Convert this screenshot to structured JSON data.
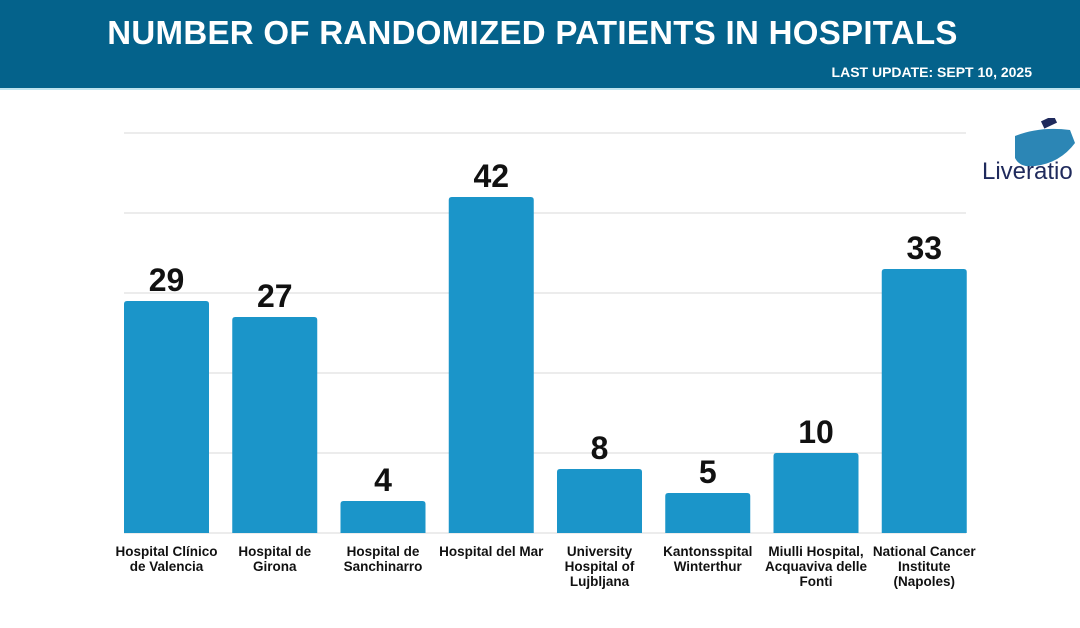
{
  "header": {
    "title": "NUMBER OF RANDOMIZED PATIENTS IN HOSPITALS",
    "last_update": "LAST UPDATE: SEPT 10, 2025"
  },
  "logo": {
    "text": "Liveratio"
  },
  "chart_data": {
    "type": "bar",
    "title": "NUMBER OF RANDOMIZED PATIENTS IN HOSPITALS",
    "categories": [
      "Hospital Clínico de Valencia",
      "Hospital de Girona",
      "Hospital de Sanchinarro",
      "Hospital del Mar",
      "University Hospital of Lujbljana",
      "Kantonsspital Winterthur",
      "Miulli Hospital, Acquaviva delle Fonti",
      "National Cancer Institute (Napoles)"
    ],
    "values": [
      29,
      27,
      4,
      42,
      8,
      5,
      10,
      33
    ],
    "ylim": [
      0,
      50
    ],
    "grid": true,
    "bar_color": "#1b95c9",
    "header_color": "#04628b"
  }
}
